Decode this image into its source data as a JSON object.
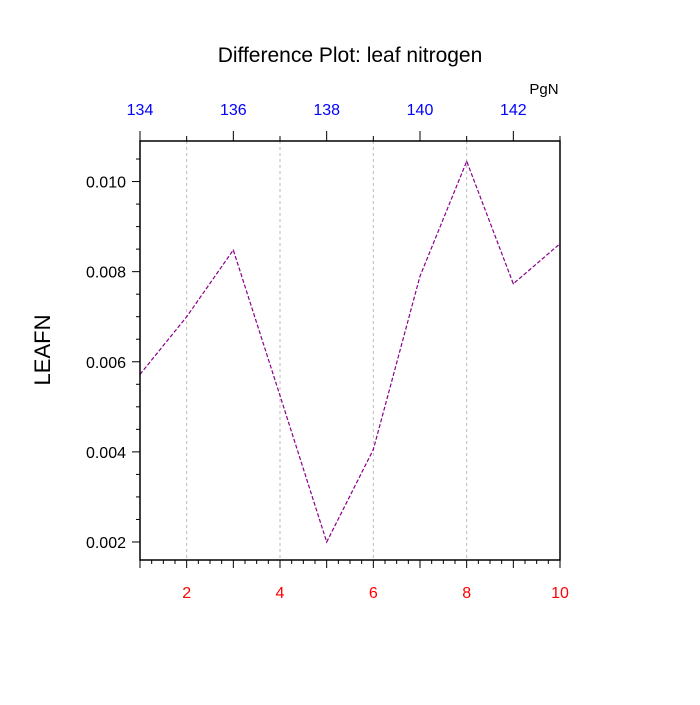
{
  "chart_data": {
    "type": "line",
    "title": "Difference Plot: leaf nitrogen",
    "ylabel": "LEAFN",
    "top_axis_units": "PgN",
    "x": [
      1,
      2,
      3,
      4,
      5,
      6,
      7,
      8,
      9,
      10
    ],
    "series": [
      {
        "values": [
          0.00572,
          0.007,
          0.00848,
          0.00525,
          0.002,
          0.00405,
          0.0079,
          0.01045,
          0.00773,
          0.00862
        ],
        "color": "#8a008a"
      }
    ],
    "xlim": [
      1,
      10
    ],
    "ylim": [
      0.0016,
      0.0109
    ],
    "bottom_ticks": [
      2,
      4,
      6,
      8,
      10
    ],
    "bottom_tick_labels": [
      "2",
      "4",
      "6",
      "8",
      "10"
    ],
    "left_ticks": [
      0.002,
      0.004,
      0.006,
      0.008,
      0.01
    ],
    "left_tick_labels": [
      "0.002",
      "0.004",
      "0.006",
      "0.008",
      "0.010"
    ],
    "top_tick_labels": [
      "134",
      "136",
      "138",
      "140",
      "142"
    ],
    "top_tick_positions_x": [
      1,
      3,
      5,
      7,
      9
    ],
    "top_tick_minor_x": [
      2,
      4,
      6,
      8,
      10
    ],
    "grid": true,
    "grid_x": [
      2,
      4,
      6,
      8
    ],
    "colors": {
      "bottom_ticks": "#ff0000",
      "top_ticks": "#0000ff",
      "grid": "#bbbbbb",
      "axes": "#000000"
    }
  }
}
